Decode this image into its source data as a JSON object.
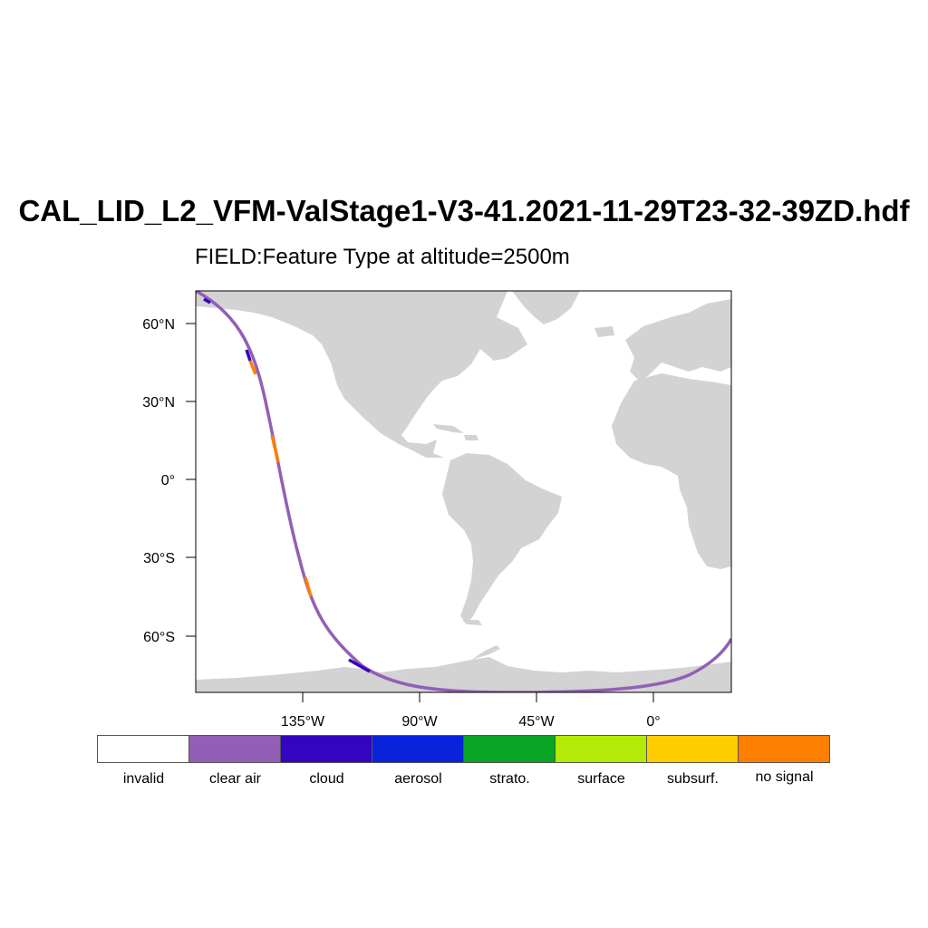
{
  "title": "CAL_LID_L2_VFM-ValStage1-V3-41.2021-11-29T23-32-39ZD.hdf",
  "subtitle": "FIELD:Feature Type at altitude=2500m",
  "map": {
    "projection": "cylindrical-equidistant",
    "land_color": "#d3d3d3",
    "ocean_color": "#ffffff",
    "track_color": "#9b59b6",
    "lat_ticks": [
      "60°N",
      "30°N",
      "0°",
      "30°S",
      "60°S"
    ],
    "lon_ticks": [
      "135°W",
      "90°W",
      "45°W",
      "0°"
    ]
  },
  "legend": [
    {
      "label": "invalid",
      "color": "#ffffff"
    },
    {
      "label": "clear air",
      "color": "#935fb6"
    },
    {
      "label": "cloud",
      "color": "#3305be"
    },
    {
      "label": "aerosol",
      "color": "#0a22da"
    },
    {
      "label": "strato.",
      "color": "#0aa425"
    },
    {
      "label": "surface",
      "color": "#b3ea07"
    },
    {
      "label": "subsurf.",
      "color": "#ffce00"
    },
    {
      "label": "no signal",
      "color": "#ff7f00"
    }
  ]
}
